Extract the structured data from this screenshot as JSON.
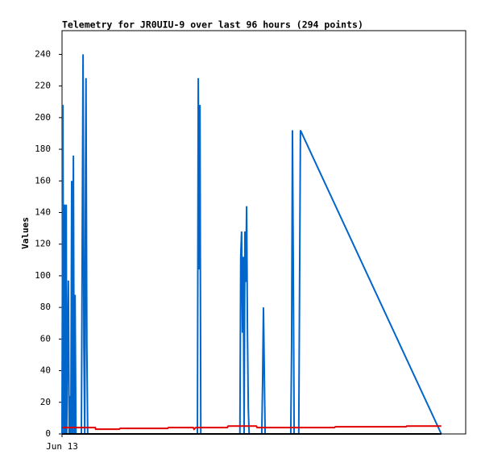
{
  "chart_data": {
    "type": "line",
    "title": "Telemetry for JR0UIU-9 over last 96 hours (294 points)",
    "y_label": "Values",
    "xlim": [
      0,
      96
    ],
    "xticks": [
      {
        "value": 0,
        "label": "Jun 13"
      }
    ],
    "ylim": [
      0,
      255
    ],
    "yticks": [
      0,
      20,
      40,
      60,
      80,
      100,
      120,
      140,
      160,
      180,
      200,
      220,
      240
    ],
    "series": [
      {
        "color": "#0066cc",
        "x": [
          0,
          0.2,
          0.4,
          0.6,
          0.8,
          1.0,
          1.1,
          1.5,
          1.7,
          1.9,
          2.1,
          2.3,
          2.5,
          2.7,
          2.9,
          3.1,
          3.3,
          4.6,
          4.8,
          5.0,
          5.2,
          5.4,
          5.6,
          5.7,
          5.9,
          6.1,
          32.2,
          32.4,
          32.6,
          32.8,
          33.0,
          42.3,
          42.5,
          42.7,
          42.9,
          43.1,
          43.3,
          43.5,
          43.7,
          43.9,
          44.1,
          44.3,
          44.5,
          47.5,
          47.7,
          47.9,
          48.1,
          48.3,
          54.4,
          54.6,
          54.8,
          55.0,
          55.2,
          56.3,
          56.5,
          56.7,
          90.2
        ],
        "values": [
          0,
          208,
          0,
          145,
          0,
          145,
          0,
          97,
          0,
          24,
          0,
          160,
          0,
          176,
          0,
          88,
          0,
          0,
          120,
          240,
          56,
          0,
          168,
          225,
          56,
          0,
          0,
          225,
          104,
          208,
          0,
          0,
          112,
          128,
          64,
          112,
          0,
          128,
          96,
          144,
          64,
          16,
          0,
          0,
          32,
          80,
          40,
          0,
          0,
          56,
          192,
          104,
          0,
          0,
          97,
          192,
          0
        ]
      },
      {
        "color": "#e00000",
        "x": [
          0,
          7.9,
          8.0,
          13.6,
          13.8,
          25.1,
          25.3,
          31.2,
          31.4,
          31.8,
          39.3,
          39.5,
          46.2,
          46.4,
          64.8,
          65.0,
          81.8,
          82.0,
          90.2
        ],
        "values": [
          4,
          4,
          3,
          3,
          3.5,
          3.5,
          4,
          4,
          3,
          4,
          4,
          5,
          5,
          4,
          4,
          4.5,
          4.5,
          5,
          5
        ]
      },
      {
        "color": "#000000",
        "x": [
          0,
          90.2
        ],
        "values": [
          0,
          0
        ]
      }
    ]
  }
}
